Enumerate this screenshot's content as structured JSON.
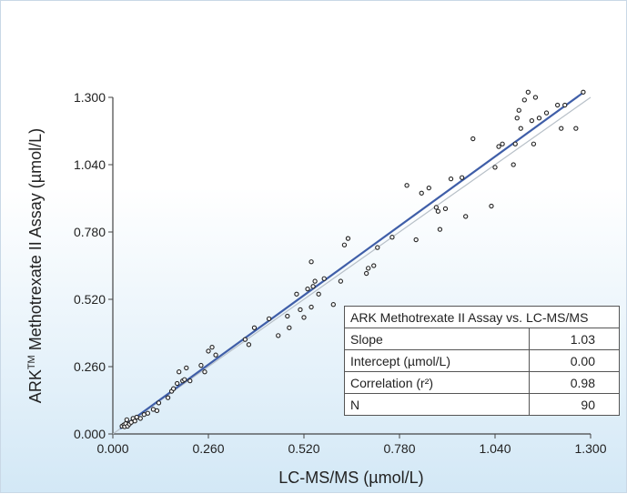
{
  "chart_data": {
    "type": "scatter",
    "xlabel": "LC-MS/MS (µmol/L)",
    "ylabel_main": "ARK",
    "ylabel_sup": "TM",
    "ylabel_rest": " Methotrexate II Assay  (µmol/L)",
    "xlim": [
      0,
      1.3
    ],
    "ylim": [
      0,
      1.3
    ],
    "x_ticks": [
      "0.000",
      "0.260",
      "0.520",
      "0.780",
      "1.040",
      "1.300"
    ],
    "y_ticks": [
      "0.000",
      "0.260",
      "0.520",
      "0.780",
      "1.040",
      "1.300"
    ],
    "regression_line": {
      "slope": 1.03,
      "intercept": 0.0,
      "color": "#3f5ea8",
      "x_range": [
        0.02,
        1.28
      ]
    },
    "identity_line": {
      "color": "#b8c0c8",
      "x_range": [
        0.0,
        1.3
      ]
    },
    "marker_color": "#222222",
    "points": [
      [
        0.025,
        0.03
      ],
      [
        0.03,
        0.035
      ],
      [
        0.032,
        0.028
      ],
      [
        0.035,
        0.04
      ],
      [
        0.038,
        0.055
      ],
      [
        0.04,
        0.03
      ],
      [
        0.045,
        0.038
      ],
      [
        0.05,
        0.045
      ],
      [
        0.055,
        0.06
      ],
      [
        0.06,
        0.05
      ],
      [
        0.065,
        0.065
      ],
      [
        0.075,
        0.06
      ],
      [
        0.085,
        0.075
      ],
      [
        0.095,
        0.08
      ],
      [
        0.11,
        0.095
      ],
      [
        0.12,
        0.09
      ],
      [
        0.125,
        0.12
      ],
      [
        0.15,
        0.14
      ],
      [
        0.16,
        0.165
      ],
      [
        0.165,
        0.175
      ],
      [
        0.175,
        0.195
      ],
      [
        0.18,
        0.24
      ],
      [
        0.19,
        0.205
      ],
      [
        0.195,
        0.21
      ],
      [
        0.2,
        0.255
      ],
      [
        0.21,
        0.205
      ],
      [
        0.24,
        0.265
      ],
      [
        0.25,
        0.24
      ],
      [
        0.26,
        0.32
      ],
      [
        0.27,
        0.335
      ],
      [
        0.28,
        0.305
      ],
      [
        0.36,
        0.365
      ],
      [
        0.37,
        0.345
      ],
      [
        0.385,
        0.41
      ],
      [
        0.425,
        0.445
      ],
      [
        0.45,
        0.38
      ],
      [
        0.475,
        0.455
      ],
      [
        0.48,
        0.41
      ],
      [
        0.5,
        0.54
      ],
      [
        0.51,
        0.48
      ],
      [
        0.52,
        0.45
      ],
      [
        0.53,
        0.56
      ],
      [
        0.54,
        0.49
      ],
      [
        0.545,
        0.57
      ],
      [
        0.55,
        0.59
      ],
      [
        0.56,
        0.54
      ],
      [
        0.54,
        0.665
      ],
      [
        0.575,
        0.6
      ],
      [
        0.6,
        0.5
      ],
      [
        0.62,
        0.59
      ],
      [
        0.63,
        0.73
      ],
      [
        0.64,
        0.755
      ],
      [
        0.69,
        0.62
      ],
      [
        0.695,
        0.64
      ],
      [
        0.71,
        0.65
      ],
      [
        0.72,
        0.72
      ],
      [
        0.76,
        0.76
      ],
      [
        0.8,
        0.96
      ],
      [
        0.825,
        0.75
      ],
      [
        0.84,
        0.93
      ],
      [
        0.86,
        0.95
      ],
      [
        0.88,
        0.875
      ],
      [
        0.885,
        0.86
      ],
      [
        0.89,
        0.79
      ],
      [
        0.905,
        0.87
      ],
      [
        0.92,
        0.985
      ],
      [
        0.95,
        0.99
      ],
      [
        0.96,
        0.84
      ],
      [
        0.98,
        1.14
      ],
      [
        1.03,
        0.88
      ],
      [
        1.04,
        1.03
      ],
      [
        1.05,
        1.11
      ],
      [
        1.06,
        1.12
      ],
      [
        1.09,
        1.04
      ],
      [
        1.095,
        1.12
      ],
      [
        1.1,
        1.22
      ],
      [
        1.105,
        1.25
      ],
      [
        1.11,
        1.18
      ],
      [
        1.12,
        1.29
      ],
      [
        1.13,
        1.32
      ],
      [
        1.14,
        1.21
      ],
      [
        1.145,
        1.12
      ],
      [
        1.16,
        1.22
      ],
      [
        1.18,
        1.24
      ],
      [
        1.21,
        1.27
      ],
      [
        1.22,
        1.18
      ],
      [
        1.23,
        1.27
      ],
      [
        1.26,
        1.18
      ],
      [
        1.28,
        1.32
      ],
      [
        1.15,
        1.3
      ]
    ]
  },
  "stats_table": {
    "title": "ARK Methotrexate II Assay vs. LC-MS/MS",
    "rows": [
      {
        "label": "Slope",
        "value": "1.03"
      },
      {
        "label": "Intercept (µmol/L)",
        "value": "0.00"
      },
      {
        "label": "Correlation (r²)",
        "value": "0.98"
      },
      {
        "label": "N",
        "value": "90"
      }
    ]
  }
}
